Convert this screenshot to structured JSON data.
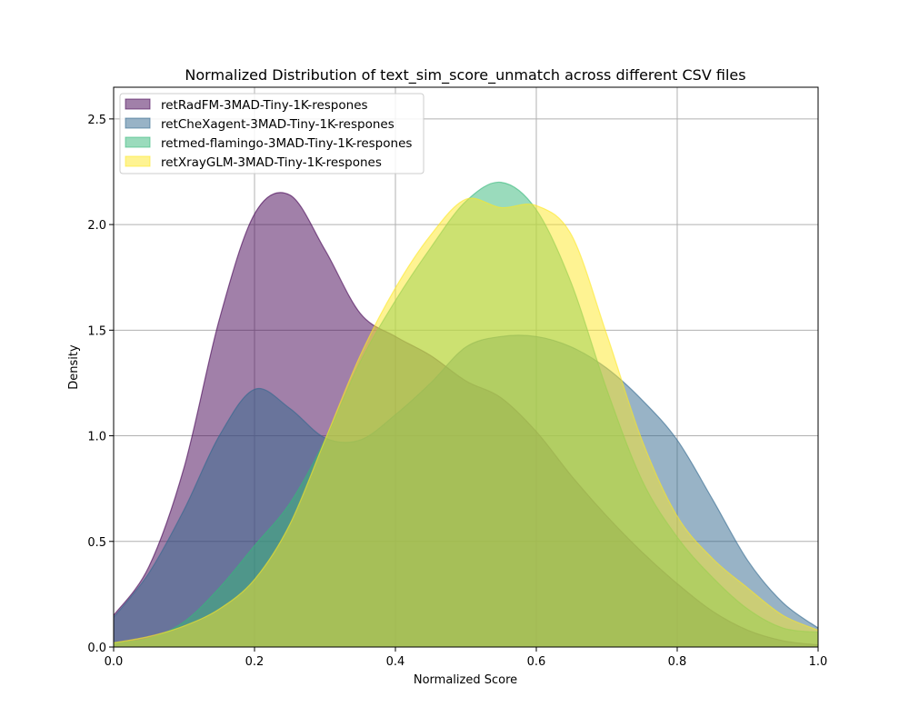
{
  "chart_data": {
    "type": "area",
    "title": "Normalized Distribution of text_sim_score_unmatch across different CSV files",
    "xlabel": "Normalized Score",
    "ylabel": "Density",
    "xlim": [
      0,
      1
    ],
    "ylim": [
      0,
      2.65
    ],
    "xticks": [
      0.0,
      0.2,
      0.4,
      0.6,
      0.8,
      1.0
    ],
    "xtick_labels": [
      "0.0",
      "0.2",
      "0.4",
      "0.6",
      "0.8",
      "1.0"
    ],
    "yticks": [
      0.0,
      0.5,
      1.0,
      1.5,
      2.0,
      2.5
    ],
    "ytick_labels": [
      "0.0",
      "0.5",
      "1.0",
      "1.5",
      "2.0",
      "2.5"
    ],
    "grid": true,
    "legend_position": "top-left",
    "x": [
      0.0,
      0.05,
      0.1,
      0.15,
      0.2,
      0.25,
      0.3,
      0.35,
      0.4,
      0.45,
      0.5,
      0.55,
      0.6,
      0.65,
      0.7,
      0.75,
      0.8,
      0.85,
      0.9,
      0.95,
      1.0
    ],
    "series": [
      {
        "name": "retRadFM-3MAD-Tiny-1K-respones",
        "color": "#440154",
        "values": [
          0.15,
          0.38,
          0.85,
          1.55,
          2.05,
          2.14,
          1.88,
          1.58,
          1.47,
          1.38,
          1.26,
          1.18,
          1.02,
          0.81,
          0.62,
          0.45,
          0.3,
          0.17,
          0.08,
          0.03,
          0.01
        ]
      },
      {
        "name": "retCheXagent-3MAD-Tiny-1K-respones",
        "color": "#31688e",
        "values": [
          0.14,
          0.35,
          0.65,
          1.0,
          1.22,
          1.13,
          0.99,
          0.98,
          1.1,
          1.25,
          1.42,
          1.47,
          1.47,
          1.42,
          1.32,
          1.17,
          0.98,
          0.7,
          0.41,
          0.21,
          0.09
        ]
      },
      {
        "name": "retmed-flamingo-3MAD-Tiny-1K-respones",
        "color": "#35b779",
        "values": [
          0.02,
          0.04,
          0.12,
          0.28,
          0.48,
          0.68,
          0.98,
          1.35,
          1.64,
          1.89,
          2.11,
          2.2,
          2.07,
          1.72,
          1.22,
          0.79,
          0.52,
          0.33,
          0.18,
          0.09,
          0.07
        ]
      },
      {
        "name": "retXrayGLM-3MAD-Tiny-1K-respones",
        "color": "#fde725",
        "values": [
          0.02,
          0.05,
          0.1,
          0.18,
          0.32,
          0.58,
          0.98,
          1.38,
          1.7,
          1.95,
          2.12,
          2.08,
          2.09,
          1.95,
          1.48,
          0.98,
          0.62,
          0.42,
          0.28,
          0.15,
          0.08
        ]
      }
    ]
  }
}
